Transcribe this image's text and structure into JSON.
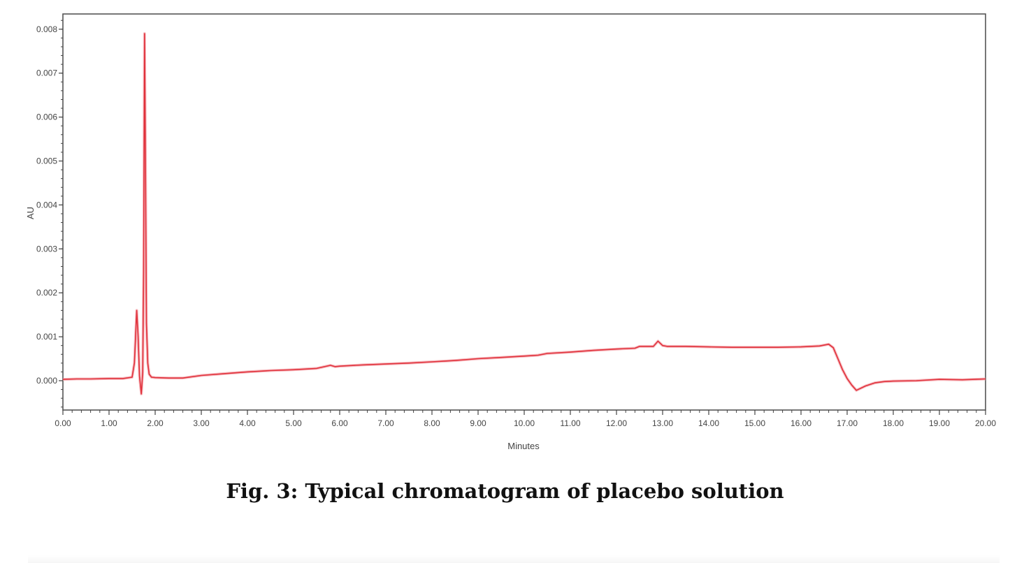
{
  "chart_data": {
    "type": "line",
    "title": "",
    "xlabel": "Minutes",
    "ylabel": "AU",
    "xlim": [
      0,
      20
    ],
    "ylim": [
      -0.00068,
      0.00836
    ],
    "grid": false,
    "legend": null,
    "x_ticks": [
      "0.00",
      "1.00",
      "2.00",
      "3.00",
      "4.00",
      "5.00",
      "6.00",
      "7.00",
      "8.00",
      "9.00",
      "10.00",
      "11.00",
      "12.00",
      "13.00",
      "14.00",
      "15.00",
      "16.00",
      "17.00",
      "18.00",
      "19.00",
      "20.00"
    ],
    "y_ticks": [
      "0.000",
      "0.001",
      "0.002",
      "0.003",
      "0.004",
      "0.005",
      "0.006",
      "0.007",
      "0.008"
    ],
    "line_color": "#e0303a",
    "series": [
      {
        "name": "placebo",
        "x": [
          0.0,
          0.3,
          0.6,
          1.0,
          1.3,
          1.5,
          1.55,
          1.6,
          1.63,
          1.66,
          1.7,
          1.73,
          1.75,
          1.77,
          1.79,
          1.81,
          1.84,
          1.87,
          1.92,
          2.0,
          2.3,
          2.6,
          3.0,
          3.5,
          4.0,
          4.5,
          5.0,
          5.5,
          5.8,
          5.9,
          6.0,
          6.5,
          7.0,
          7.5,
          8.0,
          8.5,
          9.0,
          9.5,
          10.0,
          10.3,
          10.5,
          11.0,
          11.5,
          12.0,
          12.4,
          12.5,
          12.8,
          12.9,
          13.0,
          13.1,
          13.5,
          14.0,
          14.5,
          15.0,
          15.5,
          16.0,
          16.4,
          16.6,
          16.7,
          16.8,
          16.9,
          17.0,
          17.1,
          17.2,
          17.4,
          17.6,
          17.8,
          18.0,
          18.5,
          19.0,
          19.5,
          20.0
        ],
        "y": [
          3e-05,
          4e-05,
          4e-05,
          5e-05,
          5e-05,
          8e-05,
          0.0004,
          0.0016,
          0.001,
          0.0001,
          -0.0003,
          0.0002,
          0.0025,
          0.0079,
          0.005,
          0.0013,
          0.0004,
          0.00015,
          8e-05,
          7e-05,
          6e-05,
          6e-05,
          0.00012,
          0.00016,
          0.0002,
          0.00023,
          0.00025,
          0.00028,
          0.00035,
          0.00032,
          0.00033,
          0.00036,
          0.00038,
          0.0004,
          0.00043,
          0.00046,
          0.0005,
          0.00053,
          0.00056,
          0.00058,
          0.00062,
          0.00065,
          0.00069,
          0.00072,
          0.00074,
          0.00078,
          0.00078,
          0.0009,
          0.0008,
          0.00078,
          0.00078,
          0.00077,
          0.00076,
          0.00076,
          0.00076,
          0.00077,
          0.00079,
          0.00083,
          0.00075,
          0.0005,
          0.00025,
          5e-05,
          -0.0001,
          -0.00022,
          -0.00012,
          -5e-05,
          -2e-05,
          -1e-05,
          0.0,
          3e-05,
          2e-05,
          4e-05
        ]
      }
    ]
  },
  "caption": "Fig. 3: Typical chromatogram of placebo solution"
}
